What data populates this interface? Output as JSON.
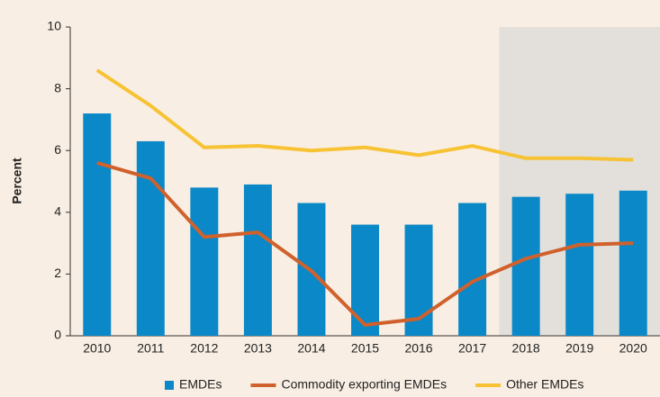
{
  "chart_data": {
    "type": "bar_line",
    "y_label": "Percent",
    "categories": [
      "2010",
      "2011",
      "2012",
      "2013",
      "2014",
      "2015",
      "2016",
      "2017",
      "2018",
      "2019",
      "2020"
    ],
    "series": [
      {
        "name": "EMDEs",
        "type": "bar",
        "color": "#0b88c7",
        "values": [
          7.2,
          6.3,
          4.8,
          4.9,
          4.3,
          3.6,
          3.6,
          4.3,
          4.5,
          4.6,
          4.7
        ]
      },
      {
        "name": "Commodity exporting EMDEs",
        "type": "line",
        "color": "#d0612c",
        "values": [
          5.6,
          5.1,
          3.2,
          3.35,
          2.1,
          0.35,
          0.55,
          1.75,
          2.5,
          2.95,
          3.0
        ]
      },
      {
        "name": "Other EMDEs",
        "type": "line",
        "color": "#f7c334",
        "values": [
          8.6,
          7.45,
          6.1,
          6.15,
          6.0,
          6.1,
          5.85,
          6.15,
          5.75,
          5.75,
          5.7
        ]
      }
    ],
    "shaded_from": "2018",
    "ylim": [
      0,
      10
    ],
    "yticks": [
      0,
      2,
      4,
      6,
      8,
      10
    ]
  }
}
